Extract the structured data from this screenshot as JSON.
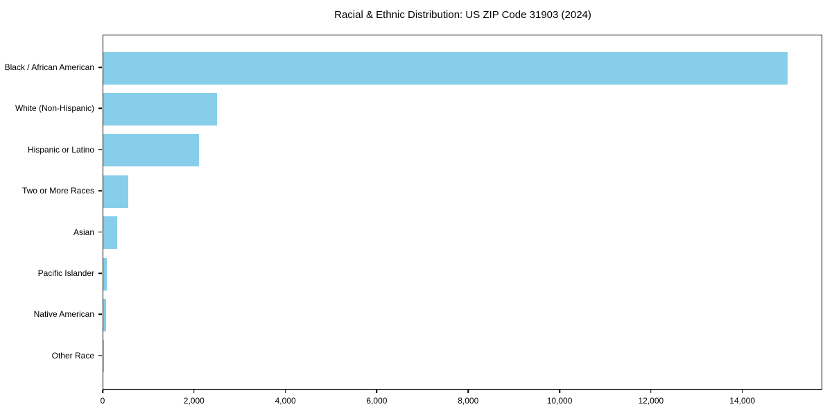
{
  "chart_data": {
    "type": "bar",
    "orientation": "horizontal",
    "title": "Racial & Ethnic Distribution: US ZIP Code 31903 (2024)",
    "categories": [
      "Black / African American",
      "White (Non-Hispanic)",
      "Hispanic or Latino",
      "Two or More Races",
      "Asian",
      "Pacific Islander",
      "Native American",
      "Other Race"
    ],
    "values": [
      15000,
      2500,
      2100,
      550,
      300,
      75,
      55,
      15
    ],
    "xlabel": "",
    "ylabel": "",
    "xlim": [
      0,
      15750
    ],
    "x_ticks": [
      {
        "value": 0,
        "label": "0"
      },
      {
        "value": 2000,
        "label": "2,000"
      },
      {
        "value": 4000,
        "label": "4,000"
      },
      {
        "value": 6000,
        "label": "6,000"
      },
      {
        "value": 8000,
        "label": "8,000"
      },
      {
        "value": 10000,
        "label": "10,000"
      },
      {
        "value": 12000,
        "label": "12,000"
      },
      {
        "value": 14000,
        "label": "14,000"
      }
    ],
    "grid": false,
    "legend": null,
    "colors": {
      "bar_fill": "#87CEEB",
      "text": "#000000",
      "spine": "#000000",
      "background": "#ffffff"
    }
  }
}
